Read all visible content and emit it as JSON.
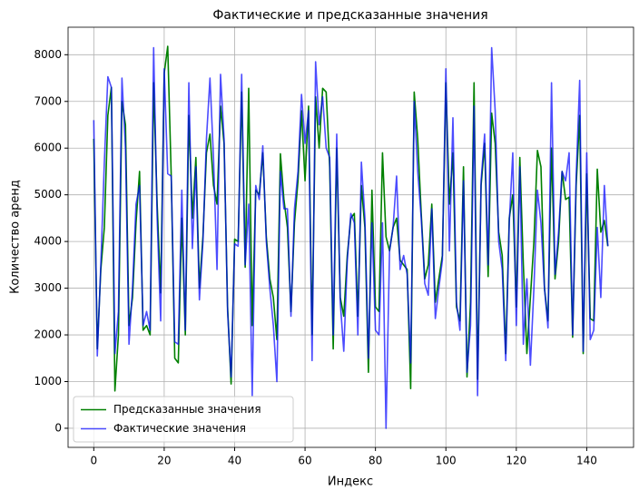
{
  "chart_data": {
    "type": "line",
    "title": "Фактические и предсказанные значения",
    "xlabel": "Индекс",
    "ylabel": "Количество аренд",
    "x": [
      0,
      1,
      2,
      3,
      4,
      5,
      6,
      7,
      8,
      9,
      10,
      11,
      12,
      13,
      14,
      15,
      16,
      17,
      18,
      19,
      20,
      21,
      22,
      23,
      24,
      25,
      26,
      27,
      28,
      29,
      30,
      31,
      32,
      33,
      34,
      35,
      36,
      37,
      38,
      39,
      40,
      41,
      42,
      43,
      44,
      45,
      46,
      47,
      48,
      49,
      50,
      51,
      52,
      53,
      54,
      55,
      56,
      57,
      58,
      59,
      60,
      61,
      62,
      63,
      64,
      65,
      66,
      67,
      68,
      69,
      70,
      71,
      72,
      73,
      74,
      75,
      76,
      77,
      78,
      79,
      80,
      81,
      82,
      83,
      84,
      85,
      86,
      87,
      88,
      89,
      90,
      91,
      92,
      93,
      94,
      95,
      96,
      97,
      98,
      99,
      100,
      101,
      102,
      103,
      104,
      105,
      106,
      107,
      108,
      109,
      110,
      111,
      112,
      113,
      114,
      115,
      116,
      117,
      118,
      119,
      120,
      121,
      122,
      123,
      124,
      125,
      126,
      127,
      128,
      129,
      130,
      131,
      132,
      133,
      134,
      135,
      136,
      137,
      138,
      139,
      140,
      141,
      142,
      143,
      144,
      145,
      146
    ],
    "series": [
      {
        "name": "Предсказанные значения",
        "color": "#008000",
        "opacity": 1,
        "values": [
          6200,
          1700,
          3400,
          4300,
          6700,
          7300,
          800,
          2000,
          7000,
          6500,
          2200,
          2800,
          4400,
          5500,
          2100,
          2200,
          2000,
          7400,
          4800,
          2900,
          7600,
          8180,
          5400,
          1500,
          1400,
          4500,
          2000,
          6700,
          4500,
          5800,
          3000,
          4100,
          5900,
          6300,
          5200,
          4800,
          6900,
          6100,
          2600,
          950,
          4050,
          4000,
          7200,
          3450,
          7280,
          2200,
          5100,
          5000,
          5900,
          4100,
          3200,
          2800,
          1900,
          5880,
          4900,
          4300,
          2500,
          4400,
          5300,
          6800,
          5300,
          6900,
          2000,
          7100,
          6000,
          7280,
          7200,
          5600,
          1700,
          6000,
          2800,
          2400,
          3700,
          4500,
          4600,
          2400,
          5200,
          4300,
          1200,
          5100,
          2600,
          2500,
          5900,
          4100,
          3800,
          4300,
          4500,
          3600,
          3500,
          3400,
          850,
          7200,
          6200,
          4600,
          3200,
          3500,
          4800,
          2700,
          3200,
          3700,
          7400,
          4800,
          5900,
          2600,
          2300,
          5600,
          1100,
          2700,
          7400,
          1050,
          5200,
          6100,
          3250,
          6750,
          6100,
          4200,
          3700,
          1600,
          4500,
          5000,
          2600,
          5800,
          3500,
          1600,
          2800,
          4000,
          5950,
          5600,
          3000,
          2300,
          6000,
          3200,
          4000,
          5500,
          4900,
          4950,
          1950,
          5200,
          6700,
          1600,
          5450,
          2350,
          2300,
          5550,
          4200,
          4450,
          3900
        ]
      },
      {
        "name": "Фактические значения",
        "color": "#0000ff",
        "opacity": 0.7,
        "values": [
          6600,
          1550,
          3500,
          5700,
          7530,
          7300,
          1600,
          2500,
          7500,
          6000,
          1800,
          3000,
          4800,
          5200,
          2200,
          2500,
          2100,
          8150,
          4500,
          2300,
          7700,
          5450,
          5400,
          1850,
          1800,
          5100,
          2100,
          7400,
          3850,
          5600,
          2750,
          4000,
          6200,
          7500,
          5800,
          3400,
          7580,
          6200,
          2500,
          1100,
          3950,
          3900,
          7580,
          3500,
          4800,
          700,
          5200,
          4900,
          6050,
          4000,
          3000,
          2200,
          1000,
          5500,
          4700,
          4700,
          2400,
          4700,
          5500,
          7150,
          6100,
          6800,
          1450,
          7850,
          6500,
          7100,
          6000,
          5800,
          2000,
          6300,
          2700,
          1650,
          3600,
          4600,
          4400,
          2000,
          5700,
          4500,
          1500,
          4400,
          2100,
          2000,
          4400,
          0,
          3800,
          4300,
          5400,
          3400,
          3700,
          3300,
          1400,
          7000,
          5500,
          4500,
          3100,
          2850,
          4700,
          2350,
          3000,
          3600,
          7700,
          3800,
          6650,
          2700,
          2100,
          5300,
          1200,
          2200,
          6900,
          700,
          5300,
          6300,
          3500,
          8150,
          6800,
          4000,
          3400,
          1450,
          4400,
          5900,
          2200,
          5600,
          1800,
          3200,
          1350,
          3000,
          5100,
          4400,
          3000,
          2150,
          7400,
          3300,
          4200,
          5500,
          5300,
          5900,
          2000,
          5400,
          7450,
          1650,
          5900,
          1900,
          2100,
          4300,
          2800,
          5200,
          3900
        ]
      }
    ],
    "xlim": [
      -7.3,
      153.3
    ],
    "xticks": [
      0,
      20,
      40,
      60,
      80,
      100,
      120,
      140
    ],
    "ylim": [
      -409,
      8589
    ],
    "yticks": [
      0,
      1000,
      2000,
      3000,
      4000,
      5000,
      6000,
      7000,
      8000
    ],
    "grid": true,
    "legend": "lower left"
  }
}
